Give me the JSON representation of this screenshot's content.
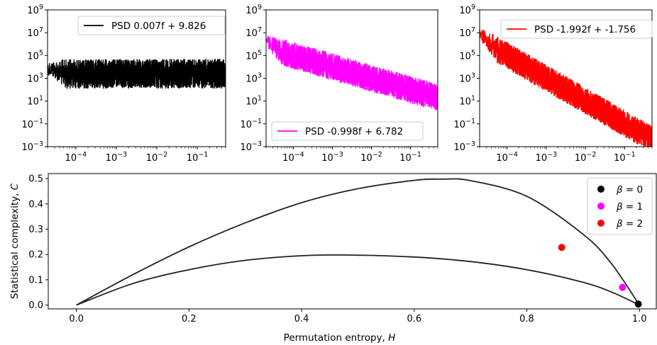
{
  "chart_data": [
    {
      "type": "line",
      "panel": "psd-white",
      "xscale": "log",
      "yscale": "log",
      "xlim": [
        2e-05,
        0.5
      ],
      "ylim": [
        0.001,
        1000000000
      ],
      "x_ticks": [
        {
          "value": 0.0001,
          "base": "10",
          "exp": "−4"
        },
        {
          "value": 0.001,
          "base": "10",
          "exp": "−3"
        },
        {
          "value": 0.01,
          "base": "10",
          "exp": "−2"
        },
        {
          "value": 0.1,
          "base": "10",
          "exp": "−1"
        }
      ],
      "y_ticks": [
        {
          "value": 0.001,
          "base": "10",
          "exp": "−3"
        },
        {
          "value": 0.1,
          "base": "10",
          "exp": "−1"
        },
        {
          "value": 10,
          "base": "10",
          "exp": "1"
        },
        {
          "value": 1000,
          "base": "10",
          "exp": "3"
        },
        {
          "value": 100000,
          "base": "10",
          "exp": "5"
        },
        {
          "value": 10000000,
          "base": "10",
          "exp": "7"
        },
        {
          "value": 1000000000,
          "base": "10",
          "exp": "9"
        }
      ],
      "legend_position": "top-right",
      "series": [
        {
          "name": "PSD 0.007f + 9.826",
          "color": "#000000",
          "slope": 0.007,
          "level_at_1e-4": 30000,
          "noise_decades": 2.6
        }
      ]
    },
    {
      "type": "line",
      "panel": "psd-pink",
      "xscale": "log",
      "yscale": "log",
      "xlim": [
        2e-05,
        0.5
      ],
      "ylim": [
        0.001,
        1000000000
      ],
      "x_ticks": [
        {
          "value": 0.0001,
          "base": "10",
          "exp": "−4"
        },
        {
          "value": 0.001,
          "base": "10",
          "exp": "−3"
        },
        {
          "value": 0.01,
          "base": "10",
          "exp": "−2"
        },
        {
          "value": 0.1,
          "base": "10",
          "exp": "−1"
        }
      ],
      "y_ticks": [
        {
          "value": 0.001,
          "base": "10",
          "exp": "−3"
        },
        {
          "value": 0.1,
          "base": "10",
          "exp": "−1"
        },
        {
          "value": 10,
          "base": "10",
          "exp": "1"
        },
        {
          "value": 1000,
          "base": "10",
          "exp": "3"
        },
        {
          "value": 100000,
          "base": "10",
          "exp": "5"
        },
        {
          "value": 10000000,
          "base": "10",
          "exp": "7"
        },
        {
          "value": 1000000000,
          "base": "10",
          "exp": "9"
        }
      ],
      "legend_position": "bottom-right",
      "series": [
        {
          "name": "PSD -0.998f + 6.782",
          "color": "#ff00ff",
          "slope": -0.998,
          "level_at_1e-4": 1000000,
          "noise_decades": 2.4
        }
      ]
    },
    {
      "type": "line",
      "panel": "psd-red",
      "xscale": "log",
      "yscale": "log",
      "xlim": [
        2e-05,
        0.5
      ],
      "ylim": [
        0.001,
        1000000000
      ],
      "x_ticks": [
        {
          "value": 0.0001,
          "base": "10",
          "exp": "−4"
        },
        {
          "value": 0.001,
          "base": "10",
          "exp": "−3"
        },
        {
          "value": 0.01,
          "base": "10",
          "exp": "−2"
        },
        {
          "value": 0.1,
          "base": "10",
          "exp": "−1"
        }
      ],
      "y_ticks": [
        {
          "value": 0.001,
          "base": "10",
          "exp": "−3"
        },
        {
          "value": 0.1,
          "base": "10",
          "exp": "−1"
        },
        {
          "value": 10,
          "base": "10",
          "exp": "1"
        },
        {
          "value": 1000,
          "base": "10",
          "exp": "3"
        },
        {
          "value": 100000,
          "base": "10",
          "exp": "5"
        },
        {
          "value": 10000000,
          "base": "10",
          "exp": "7"
        },
        {
          "value": 1000000000,
          "base": "10",
          "exp": "9"
        }
      ],
      "legend_position": "top-right",
      "series": [
        {
          "name": "PSD -1.992f + -1.756",
          "color": "#ff0000",
          "slope": -1.992,
          "level_at_1e-4": 1000000,
          "noise_decades": 2.4
        }
      ]
    },
    {
      "type": "scatter",
      "panel": "complexity-entropy",
      "xlabel_text": "Permutation entropy, ",
      "xlabel_var": "H",
      "ylabel_text": "Statistical complexity, ",
      "ylabel_var": "C",
      "xlim": [
        -0.05,
        1.03
      ],
      "ylim": [
        -0.015,
        0.52
      ],
      "x_ticks": [
        "0.0",
        "0.2",
        "0.4",
        "0.6",
        "0.8",
        "1.0"
      ],
      "y_ticks": [
        "0.0",
        "0.1",
        "0.2",
        "0.3",
        "0.4",
        "0.5"
      ],
      "legend_position": "top-right",
      "bounds": {
        "upper": [
          [
            0.0,
            0.0
          ],
          [
            0.1,
            0.12
          ],
          [
            0.2,
            0.23
          ],
          [
            0.3,
            0.325
          ],
          [
            0.4,
            0.405
          ],
          [
            0.5,
            0.46
          ],
          [
            0.6,
            0.493
          ],
          [
            0.65,
            0.498
          ],
          [
            0.7,
            0.492
          ],
          [
            0.8,
            0.43
          ],
          [
            0.9,
            0.28
          ],
          [
            0.95,
            0.165
          ],
          [
            1.0,
            0.0
          ]
        ],
        "lower": [
          [
            0.0,
            0.0
          ],
          [
            0.1,
            0.085
          ],
          [
            0.2,
            0.14
          ],
          [
            0.3,
            0.177
          ],
          [
            0.4,
            0.195
          ],
          [
            0.48,
            0.198
          ],
          [
            0.6,
            0.19
          ],
          [
            0.7,
            0.172
          ],
          [
            0.8,
            0.14
          ],
          [
            0.9,
            0.09
          ],
          [
            0.95,
            0.052
          ],
          [
            1.0,
            0.0
          ]
        ]
      },
      "series": [
        {
          "name": "β = 0",
          "label_var": "β",
          "label_val": " = 0",
          "color": "#000000",
          "x": 0.998,
          "y": 0.004
        },
        {
          "name": "β = 1",
          "label_var": "β",
          "label_val": " = 1",
          "color": "#ff00ff",
          "x": 0.97,
          "y": 0.07
        },
        {
          "name": "β = 2",
          "label_var": "β",
          "label_val": " = 2",
          "color": "#ff0000",
          "x": 0.862,
          "y": 0.228
        }
      ]
    }
  ]
}
